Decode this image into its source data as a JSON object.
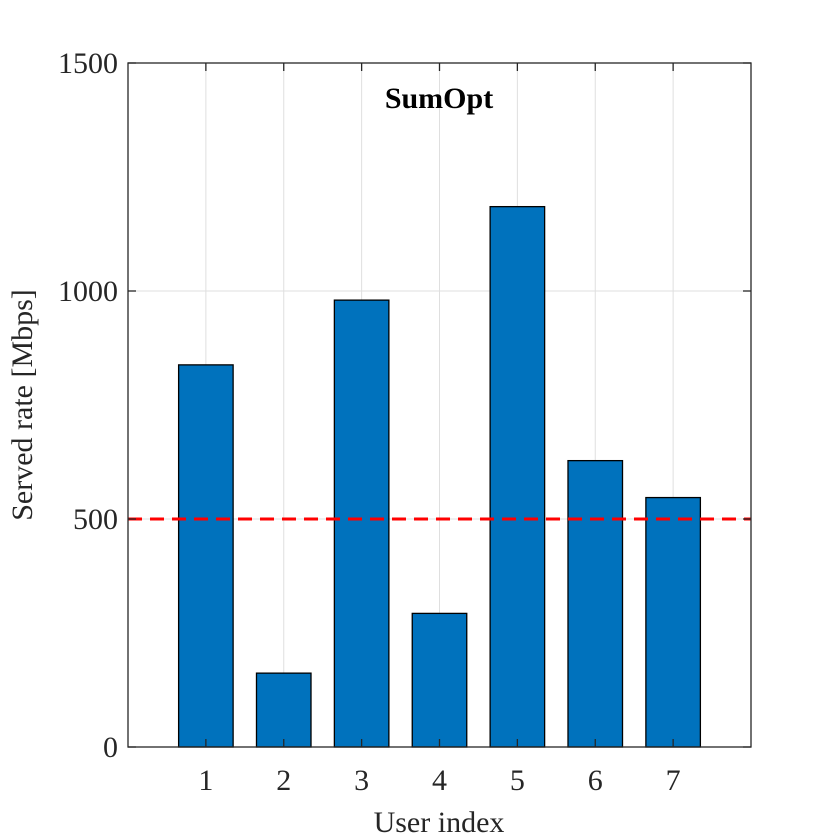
{
  "chart_data": {
    "type": "bar",
    "title": "SumOpt",
    "xlabel": "User index",
    "ylabel": "Served rate [Mbps]",
    "categories": [
      "1",
      "2",
      "3",
      "4",
      "5",
      "6",
      "7"
    ],
    "values": [
      838,
      162,
      980,
      293,
      1185,
      628,
      547
    ],
    "xlim": [
      0,
      8
    ],
    "ylim": [
      0,
      1500
    ],
    "yticks": [
      0,
      500,
      1000,
      1500
    ],
    "grid": true,
    "reference_line": {
      "y": 500,
      "style": "dashed",
      "color": "#ff0000"
    },
    "bar_color": "#0072bd",
    "bar_edge_color": "#000000"
  }
}
